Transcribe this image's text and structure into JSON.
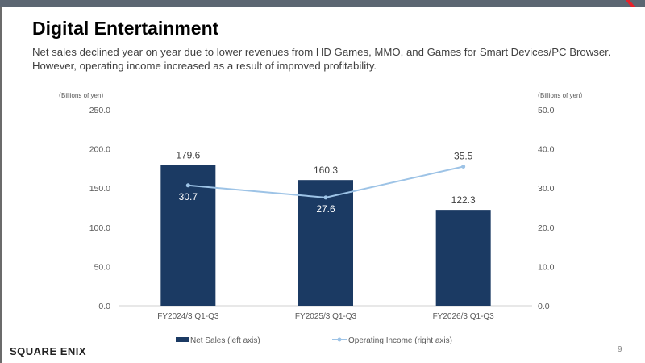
{
  "slide": {
    "title": "Digital Entertainment",
    "subtitle_line1": "Net sales declined year on year due to lower revenues from HD Games, MMO, and Games for Smart Devices/PC Browser.",
    "subtitle_line2": "However, operating income increased as a result of improved profitability.",
    "logo": "SQUARE ENIX",
    "page_number": "9"
  },
  "chart_data": {
    "type": "bar+line",
    "categories": [
      "FY2024/3 Q1-Q3",
      "FY2025/3 Q1-Q3",
      "FY2026/3 Q1-Q3"
    ],
    "series": [
      {
        "name": "Net Sales (left axis)",
        "type": "bar",
        "axis": "left",
        "values": [
          179.6,
          160.3,
          122.3
        ],
        "color": "#1b3a63"
      },
      {
        "name": "Operating Income (right axis)",
        "type": "line",
        "axis": "right",
        "values": [
          30.7,
          27.6,
          35.5
        ],
        "color": "#9dc3e6"
      }
    ],
    "ylabel_left": "（Billions of yen）",
    "ylabel_right": "（Billions of yen）",
    "ylim_left": [
      0,
      250
    ],
    "ylim_right": [
      0,
      50
    ],
    "yticks_left": [
      "0.0",
      "50.0",
      "100.0",
      "150.0",
      "200.0",
      "250.0"
    ],
    "yticks_right": [
      "0.0",
      "10.0",
      "20.0",
      "30.0",
      "40.0",
      "50.0"
    ],
    "grid": false,
    "legend": "bottom"
  }
}
